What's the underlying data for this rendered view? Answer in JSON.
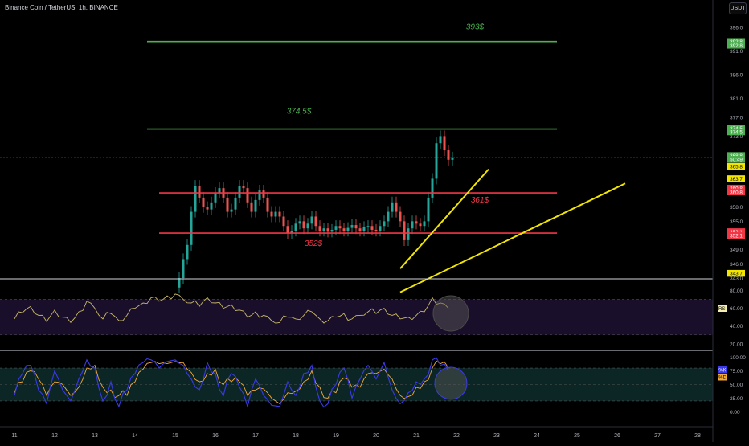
{
  "header": {
    "title": "Binance Coin / TetherUS, 1h, BINANCE",
    "currency": "USDT"
  },
  "chart_data": [
    {
      "type": "candlestick",
      "title": "Binance Coin / TetherUS, 1h, BINANCE",
      "price_axis_ticks": [
        "396.0",
        "391.0",
        "386.0",
        "381.0",
        "377.0",
        "373.0",
        "358.0",
        "355.0",
        "349.0",
        "346.0",
        "343.0"
      ],
      "ylim": [
        343,
        397
      ],
      "grid": false,
      "date_ticks": [
        "11",
        "12",
        "13",
        "14",
        "15",
        "16",
        "17",
        "18",
        "19",
        "20",
        "21",
        "22",
        "23",
        "24",
        "25",
        "26",
        "27",
        "28"
      ],
      "candles": [
        [
          15.1,
          343.0
        ],
        [
          15.2,
          347.0
        ],
        [
          15.3,
          350.0
        ],
        [
          15.4,
          357.0
        ],
        [
          15.5,
          362.5
        ],
        [
          15.6,
          360.0
        ],
        [
          15.7,
          358.0
        ],
        [
          15.8,
          357.5
        ],
        [
          15.9,
          359.0
        ],
        [
          16.0,
          361.0
        ],
        [
          16.1,
          362.0
        ],
        [
          16.2,
          360.0
        ],
        [
          16.3,
          357.0
        ],
        [
          16.4,
          357.5
        ],
        [
          16.5,
          360.0
        ],
        [
          16.6,
          362.5
        ],
        [
          16.7,
          362.0
        ],
        [
          16.8,
          359.0
        ],
        [
          16.9,
          357.0
        ],
        [
          17.0,
          359.5
        ],
        [
          17.1,
          361.5
        ],
        [
          17.2,
          360.0
        ],
        [
          17.3,
          357.0
        ],
        [
          17.4,
          356.0
        ],
        [
          17.5,
          357.0
        ],
        [
          17.6,
          356.0
        ],
        [
          17.7,
          354.0
        ],
        [
          17.8,
          352.5
        ],
        [
          17.9,
          353.0
        ],
        [
          18.0,
          354.5
        ],
        [
          18.1,
          355.0
        ],
        [
          18.2,
          353.5
        ],
        [
          18.3,
          354.5
        ],
        [
          18.4,
          356.0
        ],
        [
          18.5,
          354.0
        ],
        [
          18.6,
          353.0
        ],
        [
          18.7,
          353.5
        ],
        [
          18.8,
          352.8
        ],
        [
          18.9,
          353.2
        ],
        [
          19.0,
          354.0
        ],
        [
          19.1,
          353.5
        ],
        [
          19.2,
          353.0
        ],
        [
          19.3,
          353.6
        ],
        [
          19.4,
          354.2
        ],
        [
          19.5,
          353.5
        ],
        [
          19.6,
          353.0
        ],
        [
          19.7,
          353.8
        ],
        [
          19.8,
          354.0
        ],
        [
          19.9,
          353.2
        ],
        [
          20.0,
          353.0
        ],
        [
          20.1,
          354.0
        ],
        [
          20.2,
          355.0
        ],
        [
          20.3,
          357.0
        ],
        [
          20.4,
          359.0
        ],
        [
          20.5,
          357.0
        ],
        [
          20.6,
          355.0
        ],
        [
          20.7,
          351.0
        ],
        [
          20.8,
          353.5
        ],
        [
          20.9,
          355.0
        ],
        [
          21.0,
          354.5
        ],
        [
          21.1,
          354.0
        ],
        [
          21.2,
          355.0
        ],
        [
          21.3,
          360.0
        ],
        [
          21.4,
          364.0
        ],
        [
          21.5,
          371.5
        ],
        [
          21.6,
          373.0
        ],
        [
          21.7,
          370.0
        ],
        [
          21.8,
          368.0
        ],
        [
          21.9,
          368.5
        ]
      ],
      "annotations": [
        {
          "label": "393$",
          "kind": "horizontal-level",
          "price": 393.0,
          "x_start": 14.3,
          "x_end": 24.5,
          "color": "#4caf50"
        },
        {
          "label": "374,5$",
          "kind": "horizontal-level",
          "price": 374.5,
          "x_start": 14.3,
          "x_end": 24.5,
          "color": "#4caf50"
        },
        {
          "label": "361$",
          "kind": "horizontal-level",
          "price": 361.0,
          "x_start": 14.6,
          "x_end": 24.5,
          "color": "#f23645"
        },
        {
          "label": "352$",
          "kind": "horizontal-level",
          "price": 352.5,
          "x_start": 14.6,
          "x_end": 24.5,
          "color": "#f23645"
        }
      ],
      "trendlines": [
        {
          "from": [
            20.6,
            345.0
          ],
          "to": [
            22.8,
            366.0
          ],
          "color": "#f2e600"
        },
        {
          "from": [
            20.6,
            340.0
          ],
          "to": [
            26.2,
            363.0
          ],
          "color": "#f2e600"
        }
      ],
      "current_price_line": 368.5,
      "price_labels": [
        {
          "text": "392.8",
          "color": "#4caf50",
          "price": 393.0
        },
        {
          "text": "392.8",
          "color": "#4caf50",
          "price": 392.2
        },
        {
          "text": "374.5",
          "color": "#4caf50",
          "price": 374.7
        },
        {
          "text": "374.5",
          "color": "#4caf50",
          "price": 373.9
        },
        {
          "text": "368.8",
          "color": "#4caf50",
          "price": 368.9
        },
        {
          "text": "50:49",
          "color": "#4caf50",
          "price": 368.1
        },
        {
          "text": "365.8",
          "color": "#f2e600",
          "price": 366.6
        },
        {
          "text": "363.7",
          "color": "#f2e600",
          "price": 364.0
        },
        {
          "text": "360.8",
          "color": "#f23645",
          "price": 362.0
        },
        {
          "text": "360.8",
          "color": "#f23645",
          "price": 361.2
        },
        {
          "text": "352.1",
          "color": "#f23645",
          "price": 352.8
        },
        {
          "text": "352.1",
          "color": "#f23645",
          "price": 352.0
        },
        {
          "text": "343.7",
          "color": "#f2e600",
          "price": 344.0
        }
      ]
    },
    {
      "type": "line",
      "indicator": "RSI",
      "series": [
        {
          "name": "RSI",
          "color": "#c9b96a",
          "x": [
            11.0,
            11.2,
            11.4,
            11.6,
            11.8,
            12.0,
            12.2,
            12.4,
            12.6,
            12.8,
            13.0,
            13.2,
            13.4,
            13.6,
            13.8,
            14.0,
            14.2,
            14.4,
            14.6,
            14.8,
            15.0,
            15.2,
            15.4,
            15.6,
            15.8,
            16.0,
            16.2,
            16.4,
            16.6,
            16.8,
            17.0,
            17.2,
            17.4,
            17.6,
            17.8,
            18.0,
            18.2,
            18.4,
            18.6,
            18.8,
            19.0,
            19.2,
            19.4,
            19.6,
            19.8,
            20.0,
            20.2,
            20.4,
            20.6,
            20.8,
            21.0,
            21.2,
            21.4,
            21.6,
            21.8
          ],
          "values": [
            48,
            55,
            62,
            52,
            45,
            58,
            50,
            44,
            56,
            68,
            60,
            48,
            54,
            46,
            52,
            60,
            66,
            72,
            68,
            74,
            76,
            70,
            66,
            62,
            72,
            66,
            60,
            64,
            58,
            50,
            56,
            52,
            46,
            44,
            50,
            48,
            52,
            56,
            48,
            46,
            50,
            54,
            48,
            52,
            56,
            54,
            60,
            52,
            48,
            50,
            52,
            56,
            72,
            66,
            60
          ]
        }
      ],
      "ylim": [
        18,
        85
      ],
      "levels": [
        70,
        50,
        30
      ],
      "axis_ticks": [
        "80.00",
        "60.00",
        "40.00",
        "20.00"
      ],
      "legend": "RSI"
    },
    {
      "type": "line",
      "indicator": "Stochastic",
      "series": [
        {
          "name": "%K",
          "color": "#3a3ae8",
          "x": [
            11.0,
            11.2,
            11.4,
            11.6,
            11.8,
            12.0,
            12.2,
            12.4,
            12.6,
            12.8,
            13.0,
            13.2,
            13.4,
            13.6,
            13.8,
            14.0,
            14.2,
            14.4,
            14.6,
            14.8,
            15.0,
            15.2,
            15.4,
            15.6,
            15.8,
            16.0,
            16.2,
            16.4,
            16.6,
            16.8,
            17.0,
            17.2,
            17.4,
            17.6,
            17.8,
            18.0,
            18.2,
            18.4,
            18.6,
            18.8,
            19.0,
            19.2,
            19.4,
            19.6,
            19.8,
            20.0,
            20.2,
            20.4,
            20.6,
            20.8,
            21.0,
            21.2,
            21.4,
            21.6,
            21.8
          ],
          "values": [
            30,
            70,
            85,
            40,
            15,
            75,
            40,
            20,
            60,
            95,
            80,
            20,
            55,
            10,
            40,
            70,
            90,
            95,
            80,
            92,
            95,
            85,
            60,
            40,
            90,
            70,
            30,
            70,
            45,
            10,
            60,
            30,
            12,
            10,
            55,
            30,
            70,
            85,
            20,
            15,
            50,
            80,
            25,
            60,
            85,
            60,
            90,
            40,
            15,
            35,
            55,
            60,
            95,
            85,
            75
          ]
        },
        {
          "name": "%D",
          "color": "#f2a93b",
          "x": [
            11.0,
            11.2,
            11.4,
            11.6,
            11.8,
            12.0,
            12.2,
            12.4,
            12.6,
            12.8,
            13.0,
            13.2,
            13.4,
            13.6,
            13.8,
            14.0,
            14.2,
            14.4,
            14.6,
            14.8,
            15.0,
            15.2,
            15.4,
            15.6,
            15.8,
            16.0,
            16.2,
            16.4,
            16.6,
            16.8,
            17.0,
            17.2,
            17.4,
            17.6,
            17.8,
            18.0,
            18.2,
            18.4,
            18.6,
            18.8,
            19.0,
            19.2,
            19.4,
            19.6,
            19.8,
            20.0,
            20.2,
            20.4,
            20.6,
            20.8,
            21.0,
            21.2,
            21.4,
            21.6,
            21.8
          ],
          "values": [
            35,
            55,
            75,
            60,
            30,
            55,
            50,
            30,
            45,
            80,
            85,
            45,
            40,
            30,
            30,
            55,
            78,
            90,
            88,
            88,
            92,
            90,
            72,
            55,
            70,
            78,
            50,
            55,
            55,
            30,
            40,
            42,
            25,
            15,
            35,
            38,
            55,
            75,
            45,
            25,
            35,
            62,
            45,
            45,
            70,
            70,
            78,
            60,
            30,
            28,
            45,
            55,
            80,
            88,
            80
          ]
        }
      ],
      "ylim": [
        -5,
        105
      ],
      "levels": [
        80,
        50,
        20
      ],
      "axis_ticks": [
        "100.00",
        "75.00",
        "50.00",
        "25.00",
        "0.00"
      ],
      "legend": [
        "%K",
        "%D"
      ]
    }
  ]
}
